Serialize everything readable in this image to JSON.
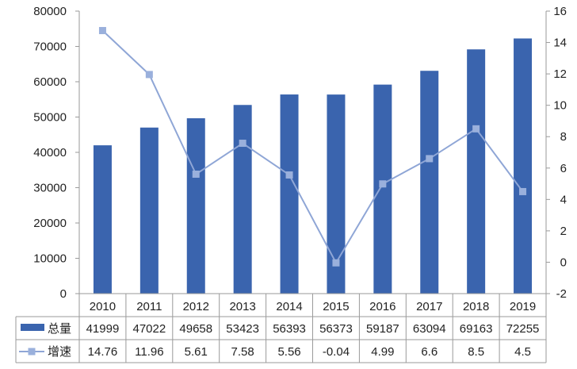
{
  "chart_data": {
    "type": "bar",
    "categories": [
      "2010",
      "2011",
      "2012",
      "2013",
      "2014",
      "2015",
      "2016",
      "2017",
      "2018",
      "2019"
    ],
    "series": [
      {
        "name": "总量",
        "type": "bar",
        "axis": "left",
        "values": [
          41999,
          47022,
          49658,
          53423,
          56393,
          56373,
          59187,
          63094,
          69163,
          72255
        ]
      },
      {
        "name": "增速",
        "type": "line",
        "axis": "right",
        "values": [
          14.76,
          11.96,
          5.61,
          7.58,
          5.56,
          -0.04,
          4.99,
          6.6,
          8.5,
          4.5
        ]
      }
    ],
    "table_values": [
      [
        "41999",
        "47022",
        "49658",
        "53423",
        "56393",
        "56373",
        "59187",
        "63094",
        "69163",
        "72255"
      ],
      [
        "14.76",
        "11.96",
        "5.61",
        "7.58",
        "5.56",
        "-0.04",
        "4.99",
        "6.6",
        "8.5",
        "4.5"
      ]
    ],
    "y_left": {
      "min": 0,
      "max": 80000,
      "step": 10000
    },
    "y_right": {
      "min": -2,
      "max": 16,
      "step": 2
    },
    "grid": false,
    "legend": "data table",
    "colors": {
      "bar": "#3A64AE",
      "line": "#8FA6D6",
      "marker": "#9AB0DC",
      "axis": "#9a9a9a",
      "text": "#222222"
    }
  }
}
